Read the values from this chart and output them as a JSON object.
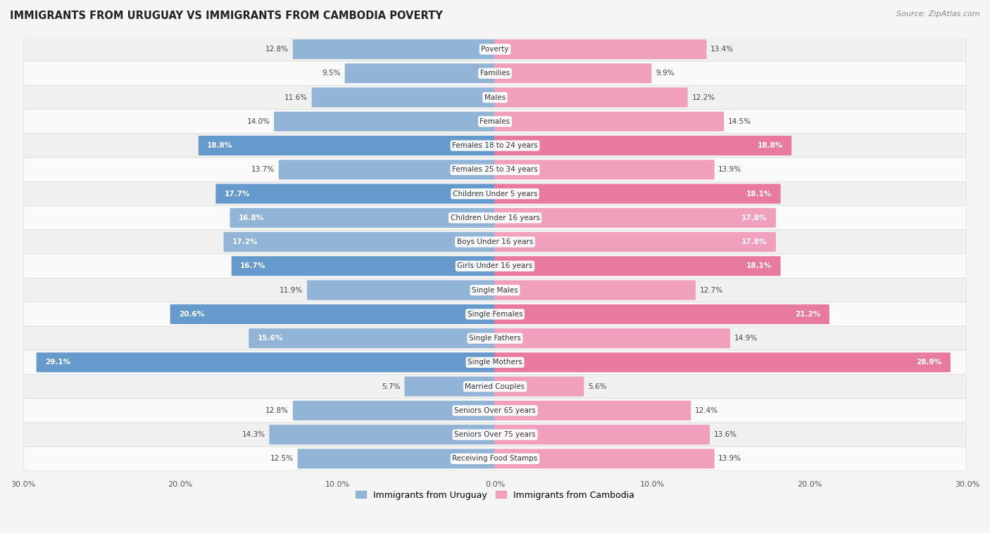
{
  "title": "IMMIGRANTS FROM URUGUAY VS IMMIGRANTS FROM CAMBODIA POVERTY",
  "source": "Source: ZipAtlas.com",
  "categories": [
    "Poverty",
    "Families",
    "Males",
    "Females",
    "Females 18 to 24 years",
    "Females 25 to 34 years",
    "Children Under 5 years",
    "Children Under 16 years",
    "Boys Under 16 years",
    "Girls Under 16 years",
    "Single Males",
    "Single Females",
    "Single Fathers",
    "Single Mothers",
    "Married Couples",
    "Seniors Over 65 years",
    "Seniors Over 75 years",
    "Receiving Food Stamps"
  ],
  "uruguay_values": [
    12.8,
    9.5,
    11.6,
    14.0,
    18.8,
    13.7,
    17.7,
    16.8,
    17.2,
    16.7,
    11.9,
    20.6,
    15.6,
    29.1,
    5.7,
    12.8,
    14.3,
    12.5
  ],
  "cambodia_values": [
    13.4,
    9.9,
    12.2,
    14.5,
    18.8,
    13.9,
    18.1,
    17.8,
    17.8,
    18.1,
    12.7,
    21.2,
    14.9,
    28.9,
    5.6,
    12.4,
    13.6,
    13.9
  ],
  "uruguay_color": "#92b4d7",
  "cambodia_color": "#f0a0bc",
  "highlight_uruguay_color": "#6699cc",
  "highlight_cambodia_color": "#e87aa0",
  "row_color_even": "#f0f0f0",
  "row_color_odd": "#fafafa",
  "background_color": "#f5f5f5",
  "xlim": 30.0,
  "legend_labels": [
    "Immigrants from Uruguay",
    "Immigrants from Cambodia"
  ],
  "highlight_rows": [
    4,
    6,
    9,
    11,
    13
  ]
}
